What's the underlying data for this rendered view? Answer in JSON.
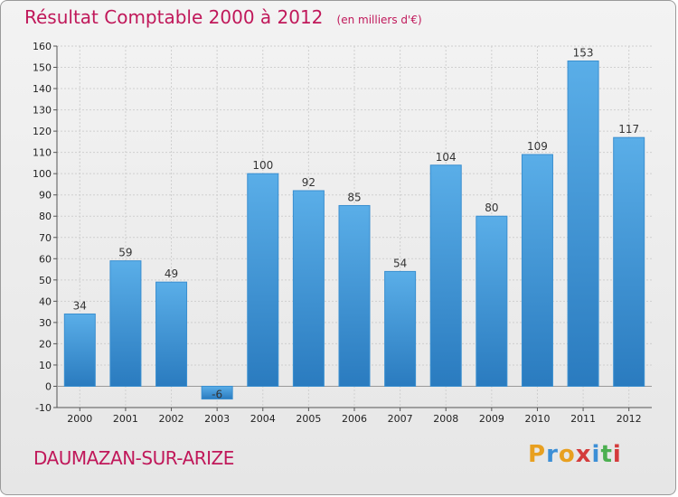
{
  "header": {
    "title": "Résultat Comptable 2000 à 2012",
    "unit": "(en milliers d'€)"
  },
  "commune": "DAUMAZAN-SUR-ARIZE",
  "logo": {
    "text": "Proxiti",
    "letters": [
      "P",
      "r",
      "o",
      "x",
      "i",
      "t",
      "i"
    ],
    "colors": [
      "#e8a020",
      "#3c8fd6",
      "#e8a020",
      "#d43c3c",
      "#3c8fd6",
      "#4caf50",
      "#d43c3c"
    ]
  },
  "chart_data": {
    "type": "bar",
    "categories": [
      "2000",
      "2001",
      "2002",
      "2003",
      "2004",
      "2005",
      "2006",
      "2007",
      "2008",
      "2009",
      "2010",
      "2011",
      "2012"
    ],
    "values": [
      34,
      59,
      49,
      -6,
      100,
      92,
      85,
      54,
      104,
      80,
      109,
      153,
      117
    ],
    "ylim": [
      -10,
      160
    ],
    "yticks": [
      -10,
      0,
      10,
      20,
      30,
      40,
      50,
      60,
      70,
      80,
      90,
      100,
      110,
      120,
      130,
      140,
      150,
      160
    ],
    "grid": true,
    "bar_color": "#4a9fe0"
  }
}
